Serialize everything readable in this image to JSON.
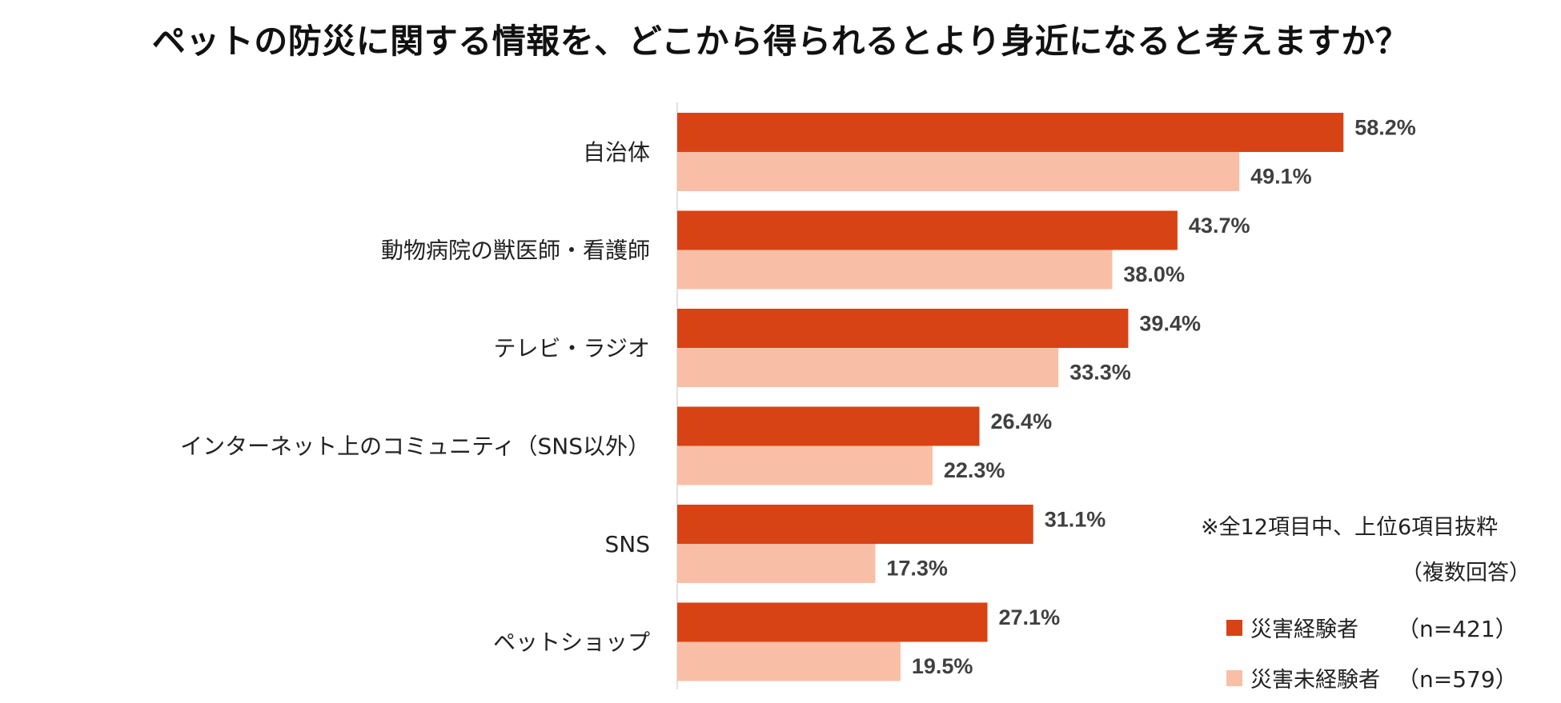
{
  "chart_data": {
    "type": "bar",
    "orientation": "horizontal",
    "title": "ペットの防災に関する情報を、どこから得られるとより身近になると考えますか？",
    "categories": [
      "自治体",
      "動物病院の獣医師・看護師",
      "テレビ・ラジオ",
      "インターネット上のコミュニティ（SNS以外）",
      "SNS",
      "ペットショップ"
    ],
    "series": [
      {
        "name": "災害経験者",
        "n_label": "（n=421）",
        "color": "#d84315",
        "values": [
          58.2,
          43.7,
          39.4,
          26.4,
          31.1,
          27.1
        ],
        "labels": [
          "58.2%",
          "43.7%",
          "39.4%",
          "26.4%",
          "31.1%",
          "27.1%"
        ]
      },
      {
        "name": "災害未経験者",
        "n_label": "（n=579）",
        "color": "#f8bfa6",
        "values": [
          49.1,
          38.0,
          33.3,
          22.3,
          17.3,
          19.5
        ],
        "labels": [
          "49.1%",
          "38.0%",
          "33.3%",
          "22.3%",
          "17.3%",
          "19.5%"
        ]
      }
    ],
    "xlim": [
      0,
      100
    ],
    "unit": "%",
    "grid": false,
    "legend_position": "bottom-right"
  },
  "notes": {
    "subset": "※全12項目中、上位6項目抜粋",
    "multi": "（複数回答）"
  }
}
